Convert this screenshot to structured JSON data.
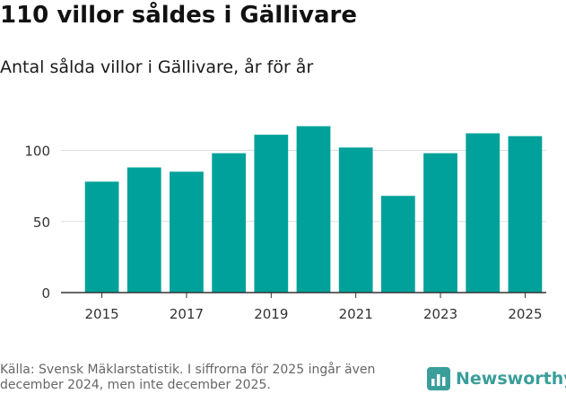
{
  "header": {
    "title": "110 villor såldes i Gällivare",
    "subtitle": "Antal sålda villor i Gällivare, år för år"
  },
  "footer": {
    "source": "Källa: Svensk Mäklarstatistik. I siffrorna för 2025 ingår även december 2024, men inte december 2025.",
    "brand": "Newsworthy"
  },
  "colors": {
    "bar": "#00a19a",
    "grid": "#dddddd",
    "axis": "#333333",
    "brand": "#3a9e9a"
  },
  "icons": {
    "brand_logo": "bar-chart-icon"
  },
  "chart_data": {
    "type": "bar",
    "title": "Antal sålda villor i Gällivare, år för år",
    "xlabel": "",
    "ylabel": "",
    "categories": [
      2015,
      2016,
      2017,
      2018,
      2019,
      2020,
      2021,
      2022,
      2023,
      2024,
      2025
    ],
    "values": [
      78,
      88,
      85,
      98,
      111,
      117,
      102,
      68,
      98,
      112,
      110
    ],
    "ylim": [
      0,
      130
    ],
    "yticks": [
      0,
      50,
      100
    ],
    "xtick_labels": [
      "2015",
      "2017",
      "2019",
      "2021",
      "2023",
      "2025"
    ],
    "grid": true,
    "legend": "none"
  }
}
